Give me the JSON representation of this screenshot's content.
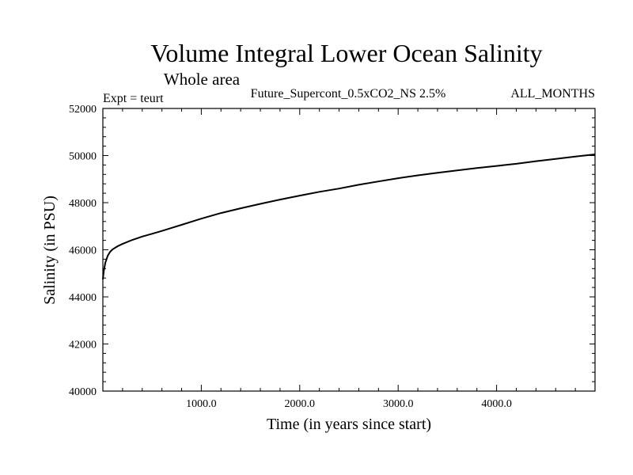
{
  "chart_data": {
    "type": "line",
    "title": "Volume Integral Lower Ocean Salinity",
    "subtitle": "Whole area",
    "experiment": "Expt = teurt",
    "run_label": "Future_Supercont_0.5xCO2_NS 2.5%",
    "months_label": "ALL_MONTHS",
    "xlabel": "Time (in years since start)",
    "ylabel": "Salinity (in PSU)",
    "xlim": [
      0,
      5000
    ],
    "ylim": [
      40000,
      52000
    ],
    "x_ticks": [
      1000,
      2000,
      3000,
      4000
    ],
    "x_tick_labels": [
      "1000.0",
      "2000.0",
      "3000.0",
      "4000.0"
    ],
    "y_ticks": [
      40000,
      42000,
      44000,
      46000,
      48000,
      50000,
      52000
    ],
    "y_tick_labels": [
      "40000",
      "42000",
      "44000",
      "46000",
      "48000",
      "50000",
      "52000"
    ],
    "grid": false,
    "series": [
      {
        "x": [
          0,
          10,
          25,
          50,
          75,
          100,
          150,
          200,
          300,
          400,
          500,
          600,
          700,
          800,
          900,
          1000,
          1200,
          1400,
          1600,
          1800,
          2000,
          2200,
          2400,
          2600,
          2800,
          3000,
          3200,
          3400,
          3600,
          3800,
          4000,
          4200,
          4400,
          4600,
          4800,
          5000
        ],
        "y": [
          44750,
          45100,
          45450,
          45750,
          45920,
          46020,
          46150,
          46250,
          46420,
          46560,
          46680,
          46800,
          46930,
          47060,
          47190,
          47320,
          47560,
          47760,
          47950,
          48130,
          48300,
          48460,
          48600,
          48760,
          48900,
          49040,
          49160,
          49270,
          49370,
          49470,
          49560,
          49650,
          49760,
          49860,
          49960,
          50050
        ]
      }
    ]
  }
}
